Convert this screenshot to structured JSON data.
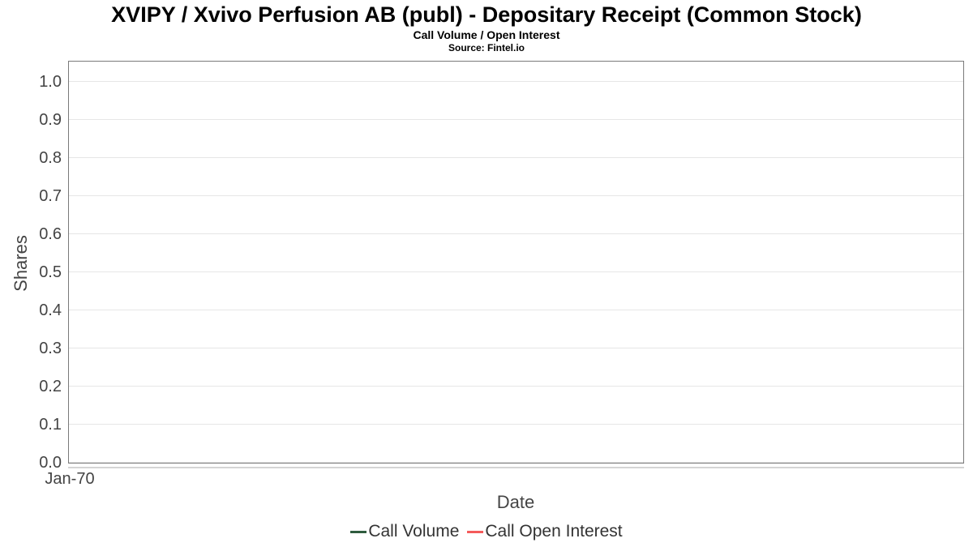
{
  "chart_data": {
    "type": "line",
    "title": "XVIPY / Xvivo Perfusion AB (publ) - Depositary Receipt (Common Stock)",
    "subtitle": "Call Volume / Open Interest",
    "source": "Source: Fintel.io",
    "xlabel": "Date",
    "ylabel": "Shares",
    "x_tick_labels": [
      "Jan-70"
    ],
    "y_ticks": [
      {
        "label": "0.0",
        "value": 0.0
      },
      {
        "label": "0.1",
        "value": 0.1
      },
      {
        "label": "0.2",
        "value": 0.2
      },
      {
        "label": "0.3",
        "value": 0.3
      },
      {
        "label": "0.4",
        "value": 0.4
      },
      {
        "label": "0.5",
        "value": 0.5
      },
      {
        "label": "0.6",
        "value": 0.6
      },
      {
        "label": "0.7",
        "value": 0.7
      },
      {
        "label": "0.8",
        "value": 0.8
      },
      {
        "label": "0.9",
        "value": 0.9
      },
      {
        "label": "1.0",
        "value": 1.0
      }
    ],
    "ylim": [
      0,
      1.06
    ],
    "grid": true,
    "legend_position": "bottom",
    "series": [
      {
        "name": "Call Volume",
        "color": "#2f5c3e",
        "x": [],
        "values": []
      },
      {
        "name": "Call Open Interest",
        "color": "#f45b5b",
        "x": [],
        "values": []
      }
    ]
  },
  "colors": {
    "background": "#ffffff",
    "grid": "#e6e6e6",
    "plot_border": "#7a7a7a",
    "axis_line": "#d4d4d4",
    "title_text": "#000000",
    "axis_text": "#444444",
    "legend_text": "#333333"
  }
}
